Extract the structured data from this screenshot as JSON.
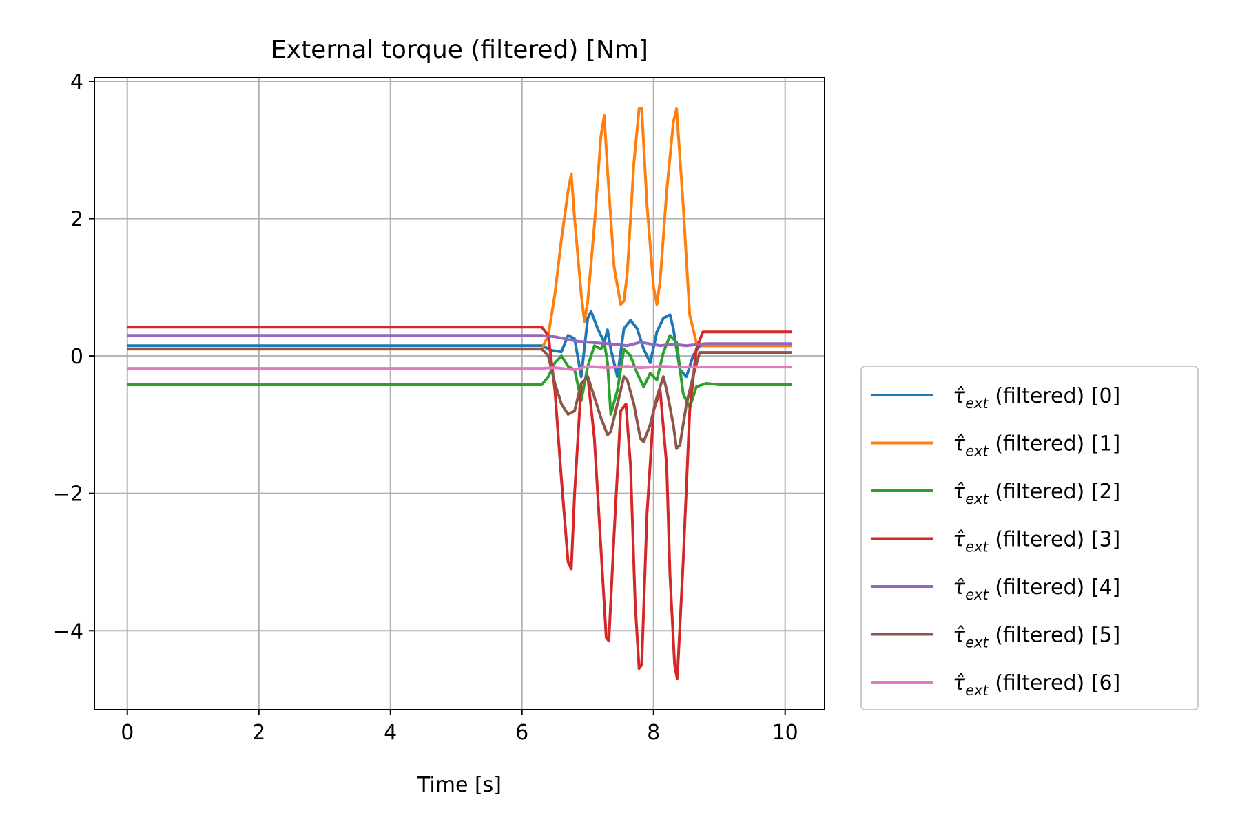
{
  "chart_data": {
    "type": "line",
    "title": "External torque (filtered) [Nm]",
    "xlabel": "Time [s]",
    "ylabel": "",
    "xlim": [
      -0.5,
      10.6
    ],
    "ylim": [
      -5.15,
      4.05
    ],
    "xticks": [
      0,
      2,
      4,
      6,
      8,
      10
    ],
    "xtick_labels": [
      "0",
      "2",
      "4",
      "6",
      "8",
      "10"
    ],
    "yticks": [
      -4,
      -2,
      0,
      2,
      4
    ],
    "ytick_labels": [
      "−4",
      "−2",
      "0",
      "2",
      "4"
    ],
    "grid": true,
    "legend_placement": "outside-right-bottom",
    "legend_symbol": "τ̂",
    "legend_subscript": "ext",
    "series": [
      {
        "name": "(filtered) [0]",
        "color": "#1f77b4",
        "x": [
          0,
          6.3,
          6.45,
          6.6,
          6.7,
          6.8,
          6.9,
          7.0,
          7.05,
          7.15,
          7.25,
          7.3,
          7.35,
          7.45,
          7.55,
          7.65,
          7.75,
          7.85,
          7.95,
          8.05,
          8.15,
          8.25,
          8.3,
          8.4,
          8.5,
          8.6,
          8.7,
          10.1
        ],
        "y": [
          0.15,
          0.15,
          0.08,
          0.06,
          0.3,
          0.25,
          -0.3,
          0.55,
          0.65,
          0.4,
          0.2,
          0.38,
          0.1,
          -0.3,
          0.4,
          0.52,
          0.4,
          0.1,
          -0.1,
          0.35,
          0.55,
          0.6,
          0.4,
          -0.2,
          -0.3,
          0.0,
          0.15,
          0.15
        ]
      },
      {
        "name": "(filtered) [1]",
        "color": "#ff7f0e",
        "x": [
          0,
          6.3,
          6.4,
          6.5,
          6.6,
          6.7,
          6.75,
          6.8,
          6.9,
          6.95,
          7.0,
          7.1,
          7.2,
          7.25,
          7.3,
          7.4,
          7.5,
          7.55,
          7.6,
          7.7,
          7.78,
          7.82,
          7.9,
          8.0,
          8.05,
          8.1,
          8.2,
          8.3,
          8.35,
          8.45,
          8.55,
          8.65,
          8.75,
          10.1
        ],
        "y": [
          0.1,
          0.1,
          0.3,
          0.9,
          1.7,
          2.4,
          2.65,
          2.0,
          0.9,
          0.5,
          0.8,
          1.9,
          3.2,
          3.5,
          2.7,
          1.3,
          0.75,
          0.8,
          1.2,
          2.8,
          3.6,
          3.6,
          2.2,
          1.0,
          0.75,
          1.1,
          2.4,
          3.4,
          3.6,
          2.2,
          0.6,
          0.2,
          0.15,
          0.15
        ]
      },
      {
        "name": "(filtered) [2]",
        "color": "#2ca02c",
        "x": [
          0,
          6.3,
          6.4,
          6.5,
          6.6,
          6.7,
          6.8,
          6.9,
          7.0,
          7.1,
          7.2,
          7.25,
          7.3,
          7.35,
          7.45,
          7.55,
          7.65,
          7.75,
          7.85,
          7.95,
          8.05,
          8.15,
          8.25,
          8.35,
          8.45,
          8.55,
          8.65,
          8.8,
          9.0,
          10.1
        ],
        "y": [
          -0.42,
          -0.42,
          -0.3,
          -0.1,
          0.0,
          -0.15,
          -0.2,
          -0.65,
          -0.15,
          0.15,
          0.1,
          0.2,
          -0.1,
          -0.85,
          -0.5,
          0.1,
          0.0,
          -0.25,
          -0.45,
          -0.25,
          -0.35,
          0.05,
          0.3,
          0.2,
          -0.55,
          -0.75,
          -0.45,
          -0.4,
          -0.42,
          -0.42
        ]
      },
      {
        "name": "(filtered) [3]",
        "color": "#d62728",
        "x": [
          0,
          6.3,
          6.4,
          6.5,
          6.6,
          6.7,
          6.75,
          6.8,
          6.9,
          7.0,
          7.1,
          7.2,
          7.28,
          7.32,
          7.4,
          7.5,
          7.58,
          7.65,
          7.72,
          7.78,
          7.82,
          7.9,
          8.0,
          8.1,
          8.2,
          8.25,
          8.32,
          8.36,
          8.45,
          8.55,
          8.65,
          8.75,
          10.1
        ],
        "y": [
          0.42,
          0.42,
          0.3,
          -0.5,
          -1.8,
          -3.0,
          -3.1,
          -2.0,
          -0.4,
          -0.3,
          -1.2,
          -2.8,
          -4.1,
          -4.15,
          -2.6,
          -0.8,
          -0.7,
          -1.6,
          -3.6,
          -4.55,
          -4.5,
          -2.3,
          -0.8,
          -0.5,
          -1.6,
          -3.2,
          -4.5,
          -4.7,
          -3.0,
          -0.8,
          0.1,
          0.35,
          0.35
        ]
      },
      {
        "name": "(filtered) [4]",
        "color": "#9467bd",
        "x": [
          0,
          6.3,
          6.5,
          6.8,
          7.0,
          7.3,
          7.6,
          7.8,
          8.1,
          8.3,
          8.5,
          8.8,
          10.1
        ],
        "y": [
          0.3,
          0.3,
          0.28,
          0.22,
          0.2,
          0.18,
          0.15,
          0.2,
          0.15,
          0.17,
          0.15,
          0.18,
          0.18
        ]
      },
      {
        "name": "(filtered) [5]",
        "color": "#8c564b",
        "x": [
          0,
          6.3,
          6.4,
          6.5,
          6.6,
          6.7,
          6.8,
          6.9,
          7.0,
          7.1,
          7.2,
          7.3,
          7.35,
          7.45,
          7.55,
          7.6,
          7.7,
          7.8,
          7.85,
          7.95,
          8.05,
          8.15,
          8.2,
          8.3,
          8.35,
          8.4,
          8.5,
          8.6,
          8.7,
          10.1
        ],
        "y": [
          0.1,
          0.1,
          0.0,
          -0.4,
          -0.7,
          -0.85,
          -0.8,
          -0.4,
          -0.3,
          -0.6,
          -0.9,
          -1.15,
          -1.1,
          -0.7,
          -0.3,
          -0.35,
          -0.7,
          -1.2,
          -1.25,
          -1.0,
          -0.6,
          -0.3,
          -0.5,
          -1.0,
          -1.35,
          -1.3,
          -0.7,
          -0.3,
          0.05,
          0.05
        ]
      },
      {
        "name": "(filtered) [6]",
        "color": "#e377c2",
        "x": [
          0,
          6.3,
          6.5,
          6.8,
          7.0,
          7.3,
          7.6,
          7.8,
          8.1,
          8.4,
          8.8,
          10.1
        ],
        "y": [
          -0.18,
          -0.18,
          -0.17,
          -0.2,
          -0.15,
          -0.17,
          -0.15,
          -0.17,
          -0.15,
          -0.16,
          -0.16,
          -0.16
        ]
      }
    ]
  }
}
